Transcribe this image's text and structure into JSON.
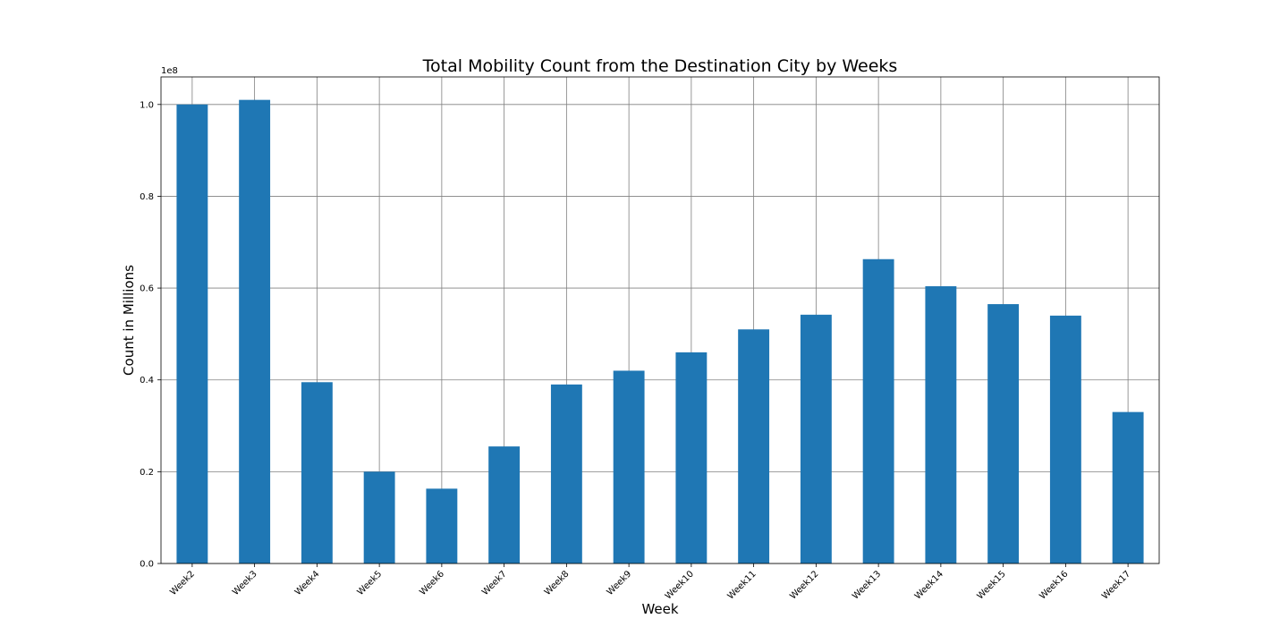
{
  "chart_data": {
    "type": "bar",
    "title": "Total Mobility Count from the Destination City by Weeks",
    "xlabel": "Week",
    "ylabel": "Count in Millions",
    "y_offset_label": "1e8",
    "categories": [
      "Week2",
      "Week3",
      "Week4",
      "Week5",
      "Week6",
      "Week7",
      "Week8",
      "Week9",
      "Week10",
      "Week11",
      "Week12",
      "Week13",
      "Week14",
      "Week15",
      "Week16",
      "Week17"
    ],
    "values": [
      100000000,
      101000000,
      39500000,
      20000000,
      16300000,
      25500000,
      39000000,
      42000000,
      46000000,
      51000000,
      54200000,
      66300000,
      60400000,
      56500000,
      54000000,
      33000000
    ],
    "ylim": [
      0,
      106000000
    ],
    "yticks": [
      0,
      20000000,
      40000000,
      60000000,
      80000000,
      100000000
    ],
    "ytick_labels": [
      "0.0",
      "0.2",
      "0.4",
      "0.6",
      "0.8",
      "1.0"
    ],
    "grid": true,
    "legend": "none",
    "colors": {
      "bar": "#1f77b4",
      "grid": "#808080",
      "frame": "#000000"
    }
  }
}
